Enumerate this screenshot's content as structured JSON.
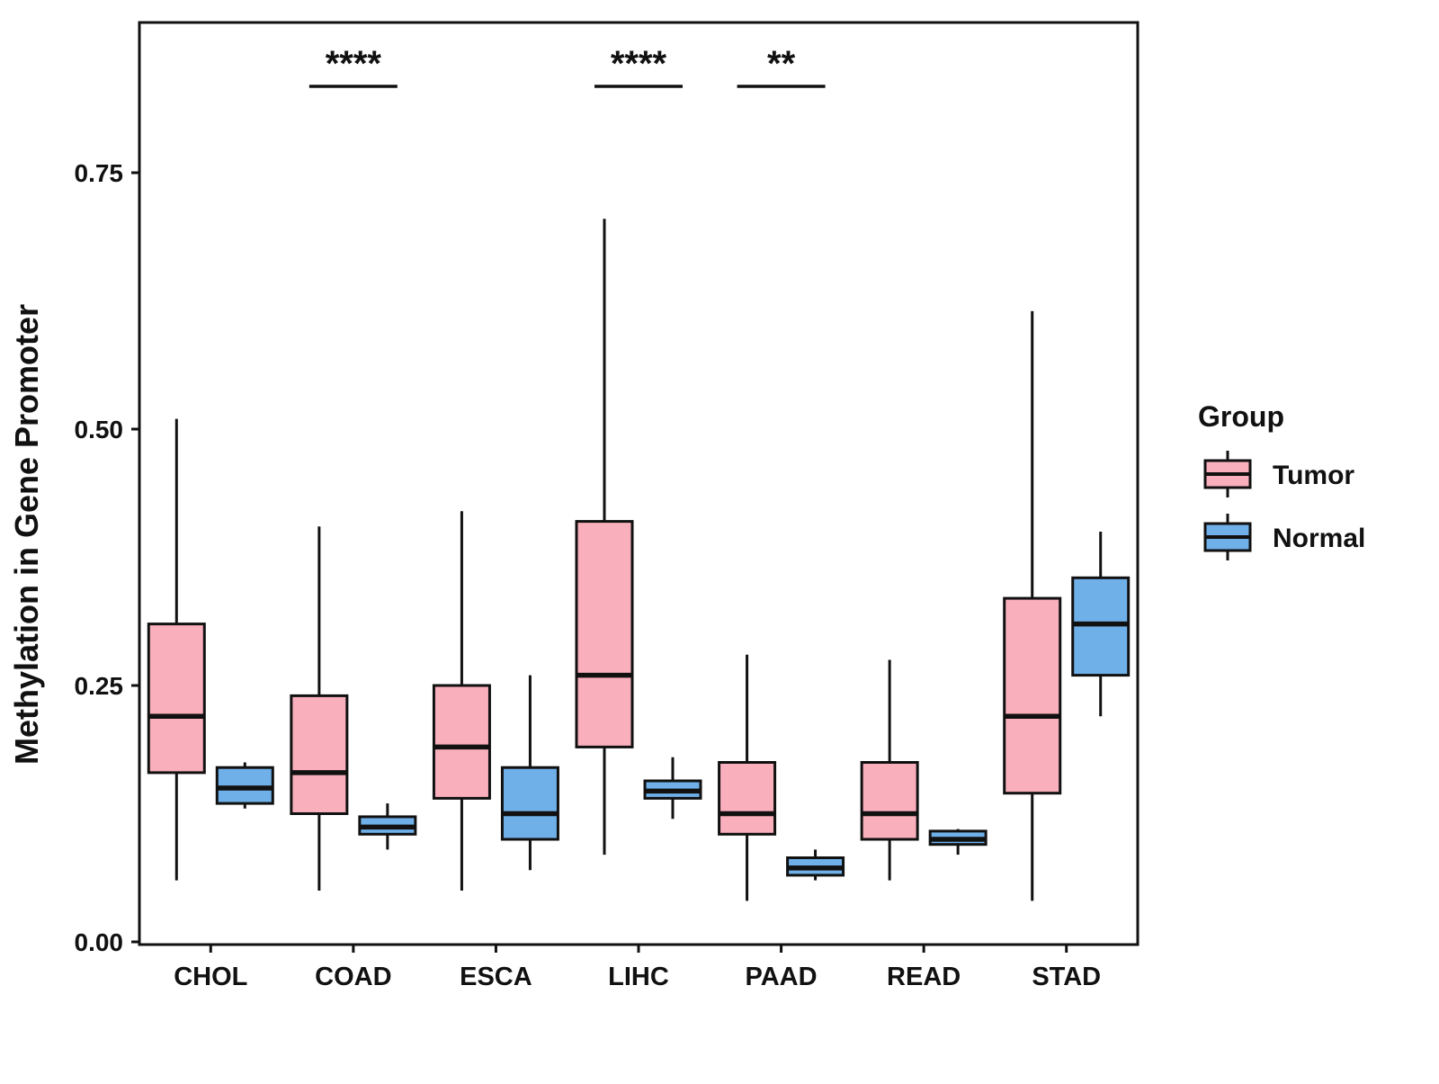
{
  "chart_data": {
    "type": "boxplot",
    "title": "",
    "xlabel": "",
    "ylabel": "Methylation in Gene Promoter",
    "categories": [
      "CHOL",
      "COAD",
      "ESCA",
      "LIHC",
      "PAAD",
      "READ",
      "STAD"
    ],
    "y_ticks": [
      0.0,
      0.25,
      0.5,
      0.75
    ],
    "ylim": [
      0.0,
      0.9
    ],
    "grid": "off",
    "legend_position": "right",
    "colors": {
      "tumor_fill": "#F9AFBC",
      "normal_fill": "#6FB0E8",
      "stroke": "#111111"
    },
    "legend": {
      "title": "Group",
      "entries": [
        {
          "label": "Tumor",
          "color": "#F9AFBC"
        },
        {
          "label": "Normal",
          "color": "#6FB0E8"
        }
      ]
    },
    "series": [
      {
        "name": "Tumor",
        "color": "#F9AFBC",
        "boxes": [
          {
            "category": "CHOL",
            "whisker_low": 0.06,
            "q1": 0.165,
            "median": 0.22,
            "q3": 0.31,
            "whisker_high": 0.51
          },
          {
            "category": "COAD",
            "whisker_low": 0.05,
            "q1": 0.125,
            "median": 0.165,
            "q3": 0.24,
            "whisker_high": 0.405
          },
          {
            "category": "ESCA",
            "whisker_low": 0.05,
            "q1": 0.14,
            "median": 0.19,
            "q3": 0.25,
            "whisker_high": 0.42
          },
          {
            "category": "LIHC",
            "whisker_low": 0.085,
            "q1": 0.19,
            "median": 0.26,
            "q3": 0.41,
            "whisker_high": 0.705
          },
          {
            "category": "PAAD",
            "whisker_low": 0.04,
            "q1": 0.105,
            "median": 0.125,
            "q3": 0.175,
            "whisker_high": 0.28
          },
          {
            "category": "READ",
            "whisker_low": 0.06,
            "q1": 0.1,
            "median": 0.125,
            "q3": 0.175,
            "whisker_high": 0.275
          },
          {
            "category": "STAD",
            "whisker_low": 0.04,
            "q1": 0.145,
            "median": 0.22,
            "q3": 0.335,
            "whisker_high": 0.615
          }
        ]
      },
      {
        "name": "Normal",
        "color": "#6FB0E8",
        "boxes": [
          {
            "category": "CHOL",
            "whisker_low": 0.13,
            "q1": 0.135,
            "median": 0.15,
            "q3": 0.17,
            "whisker_high": 0.175
          },
          {
            "category": "COAD",
            "whisker_low": 0.09,
            "q1": 0.105,
            "median": 0.112,
            "q3": 0.122,
            "whisker_high": 0.135
          },
          {
            "category": "ESCA",
            "whisker_low": 0.07,
            "q1": 0.1,
            "median": 0.125,
            "q3": 0.17,
            "whisker_high": 0.26
          },
          {
            "category": "LIHC",
            "whisker_low": 0.12,
            "q1": 0.14,
            "median": 0.147,
            "q3": 0.157,
            "whisker_high": 0.18
          },
          {
            "category": "PAAD",
            "whisker_low": 0.06,
            "q1": 0.065,
            "median": 0.072,
            "q3": 0.082,
            "whisker_high": 0.09
          },
          {
            "category": "READ",
            "whisker_low": 0.085,
            "q1": 0.095,
            "median": 0.1,
            "q3": 0.108,
            "whisker_high": 0.11
          },
          {
            "category": "STAD",
            "whisker_low": 0.22,
            "q1": 0.26,
            "median": 0.31,
            "q3": 0.355,
            "whisker_high": 0.4
          }
        ]
      }
    ],
    "annotations": [
      {
        "category": "COAD",
        "label": "****"
      },
      {
        "category": "LIHC",
        "label": "****"
      },
      {
        "category": "PAAD",
        "label": "**"
      }
    ]
  }
}
